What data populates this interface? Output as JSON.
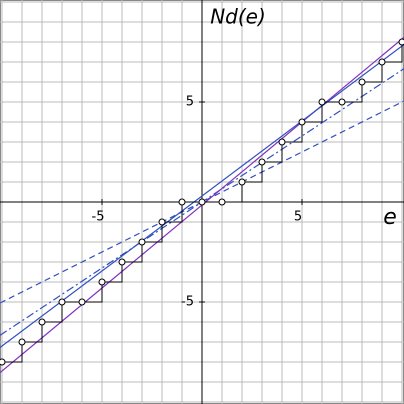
{
  "chart_data": {
    "type": "step",
    "title": "Nd(e)",
    "x_label": "e",
    "xlim": [
      -10.1,
      10.1
    ],
    "ylim": [
      -10.1,
      10.1
    ],
    "xticks": [
      -5,
      5
    ],
    "yticks": [
      -5,
      5
    ],
    "grid": 1,
    "x": [
      -10,
      -9,
      -8,
      -7,
      -6,
      -5,
      -4,
      -3,
      -2,
      -1,
      0,
      1,
      2,
      3,
      4,
      5,
      6,
      7,
      8,
      9,
      10
    ],
    "values": [
      -8,
      -7,
      -6,
      -5,
      -5,
      -4,
      -3,
      -2,
      -1,
      0,
      0,
      0,
      1,
      2,
      3,
      4,
      5,
      5,
      6,
      7,
      8
    ],
    "color": "#000000",
    "lines": [
      {
        "slope": 0.5,
        "intercept": 0,
        "color": "#3050c0",
        "dash": "6,4"
      },
      {
        "slope": 0.66,
        "intercept": 0,
        "color": "#3050c0",
        "dash": "8,3,2,3"
      },
      {
        "slope": 0.83,
        "intercept": -0.15,
        "color": "#8030c0",
        "dash": "none"
      },
      {
        "slope": 0.75,
        "intercept": 0.3,
        "color": "#3050c0",
        "dash": "none"
      }
    ]
  }
}
